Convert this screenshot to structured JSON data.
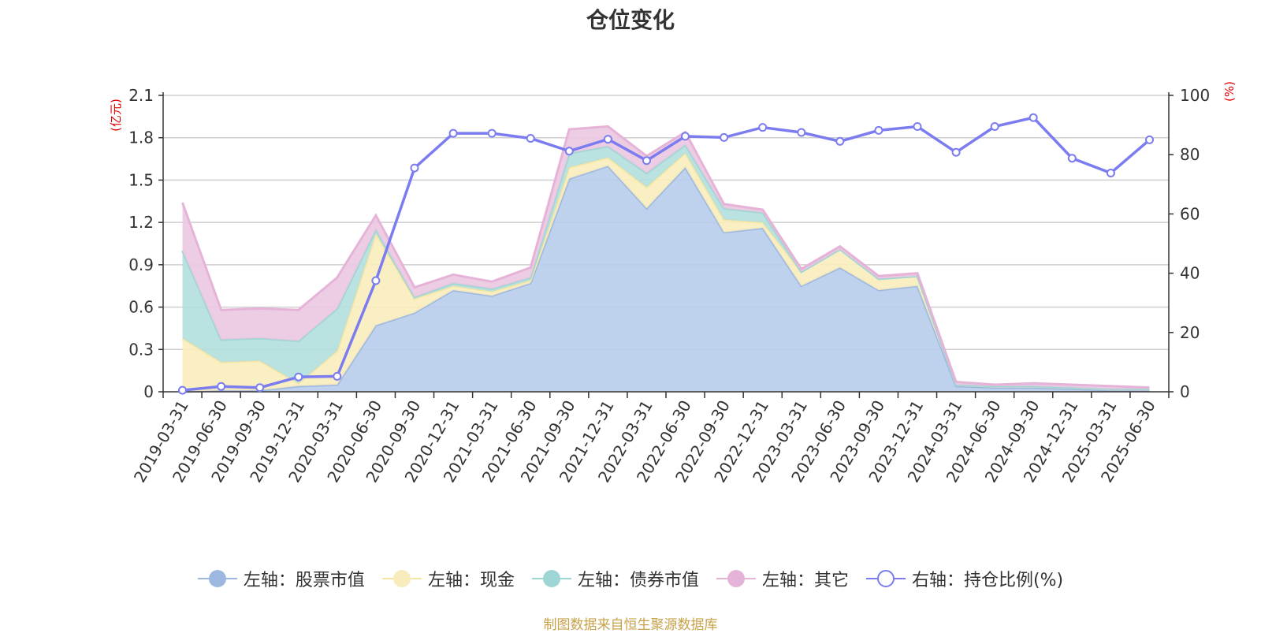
{
  "chart_data": {
    "type": "area",
    "title": "仓位变化",
    "left_axis_unit": "(亿元)",
    "right_axis_unit": "(%)",
    "categories": [
      "2019-03-31",
      "2019-06-30",
      "2019-09-30",
      "2019-12-31",
      "2020-03-31",
      "2020-06-30",
      "2020-09-30",
      "2020-12-31",
      "2021-03-31",
      "2021-06-30",
      "2021-09-30",
      "2021-12-31",
      "2022-03-31",
      "2022-06-30",
      "2022-09-30",
      "2022-12-31",
      "2023-03-31",
      "2023-06-30",
      "2023-09-30",
      "2023-12-31",
      "2024-03-31",
      "2024-06-30",
      "2024-09-30",
      "2024-12-31",
      "2025-03-31",
      "2025-06-30"
    ],
    "ylim_left": [
      0,
      2.1
    ],
    "yticks_left": [
      "0",
      "0.3",
      "0.6",
      "0.9",
      "1.2",
      "1.5",
      "1.8",
      "2.1"
    ],
    "ylim_right": [
      0,
      100
    ],
    "yticks_right": [
      "0",
      "20",
      "40",
      "60",
      "80",
      "100"
    ],
    "stacked_series": [
      {
        "name": "左轴：股票市值",
        "color": "#9db8e0",
        "fill": "#b7cceb",
        "values": [
          0.0,
          0.01,
          0.01,
          0.04,
          0.05,
          0.47,
          0.56,
          0.72,
          0.68,
          0.77,
          1.51,
          1.6,
          1.3,
          1.59,
          1.13,
          1.16,
          0.75,
          0.88,
          0.72,
          0.75,
          0.04,
          0.03,
          0.03,
          0.02,
          0.01,
          0.01
        ]
      },
      {
        "name": "左轴：现金",
        "color": "#f7e6a3",
        "fill": "#f9ecbc",
        "values": [
          0.38,
          0.2,
          0.21,
          0.02,
          0.24,
          0.65,
          0.1,
          0.03,
          0.03,
          0.02,
          0.08,
          0.06,
          0.15,
          0.1,
          0.09,
          0.04,
          0.1,
          0.13,
          0.08,
          0.07,
          0.01,
          0.01,
          0.01,
          0.01,
          0.01,
          0.01
        ]
      },
      {
        "name": "左轴：债券市值",
        "color": "#9ed5d5",
        "fill": "#b2dfdd",
        "values": [
          0.62,
          0.16,
          0.16,
          0.3,
          0.3,
          0.03,
          0.01,
          0.02,
          0.02,
          0.02,
          0.1,
          0.08,
          0.1,
          0.06,
          0.08,
          0.07,
          0.0,
          0.0,
          0.0,
          0.0,
          0.0,
          0.0,
          0.0,
          0.0,
          0.0,
          0.0
        ]
      },
      {
        "name": "左轴：其它",
        "color": "#e6b3d8",
        "fill": "#ebc8e1",
        "values": [
          0.34,
          0.21,
          0.21,
          0.22,
          0.22,
          0.1,
          0.07,
          0.06,
          0.05,
          0.07,
          0.17,
          0.14,
          0.12,
          0.09,
          0.03,
          0.02,
          0.02,
          0.02,
          0.02,
          0.02,
          0.02,
          0.01,
          0.02,
          0.02,
          0.02,
          0.01
        ]
      }
    ],
    "line_series": {
      "name": "右轴：持仓比例(%)",
      "color": "#7b7cf0",
      "values": [
        0.5,
        1.8,
        1.4,
        5.0,
        5.2,
        37.5,
        75.5,
        87.2,
        87.2,
        85.5,
        81.2,
        85.2,
        78.0,
        86.2,
        85.8,
        89.2,
        87.5,
        84.5,
        88.2,
        89.5,
        80.8,
        89.5,
        92.5,
        78.8,
        73.8,
        85.0
      ]
    },
    "legend_position": "bottom",
    "grid": true
  },
  "legend": [
    {
      "label": "左轴：股票市值",
      "marker": "filled-circle",
      "color": "#9db8e0",
      "line_color": "#9db8e0"
    },
    {
      "label": "左轴：现金",
      "marker": "filled-circle",
      "color": "#f9ecbc",
      "line_color": "#f7e6a3"
    },
    {
      "label": "左轴：债券市值",
      "marker": "filled-circle",
      "color": "#9ed5d5",
      "line_color": "#9ed5d5"
    },
    {
      "label": "左轴：其它",
      "marker": "filled-circle",
      "color": "#e6b3d8",
      "line_color": "#e6b3d8"
    },
    {
      "label": "右轴：持仓比例(%)",
      "marker": "hollow-circle",
      "color": "#7b7cf0",
      "line_color": "#7b7cf0"
    }
  ],
  "footer": {
    "source": "制图数据来自恒生聚源数据库"
  }
}
